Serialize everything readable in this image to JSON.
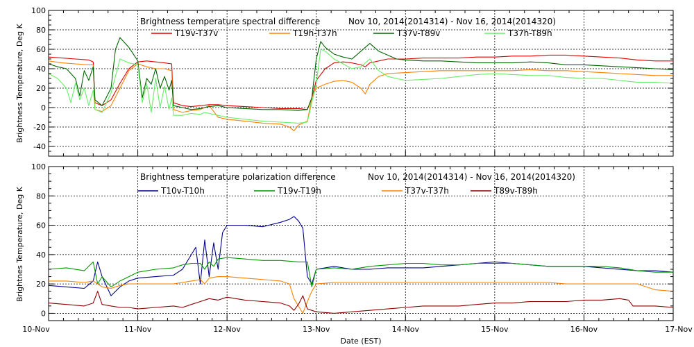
{
  "xlabel": "Date (EST)",
  "x_ticks": [
    "10-Nov",
    "11-Nov",
    "12-Nov",
    "13-Nov",
    "14-Nov",
    "15-Nov",
    "16-Nov",
    "17-Nov"
  ],
  "chart_data": [
    {
      "type": "line",
      "title": "Brightness temperature spectral difference",
      "date_range": "Nov 10, 2014(2014314) - Nov 16, 2014(2014320)",
      "xlabel": "Date (EST)",
      "ylabel": "Brightness Temperature, Deg K",
      "xlim": [
        0,
        7
      ],
      "ylim": [
        -50,
        100
      ],
      "y_ticks": [
        "-40",
        "-20",
        "0",
        "20",
        "40",
        "60",
        "80",
        "100"
      ],
      "grid": true,
      "legend_position": "top",
      "series": [
        {
          "name": "T19v-T37v",
          "color": "#e00000",
          "x": [
            0,
            0.15,
            0.3,
            0.45,
            0.5,
            0.52,
            0.6,
            0.7,
            0.8,
            0.9,
            1.0,
            1.1,
            1.2,
            1.3,
            1.38,
            1.4,
            1.5,
            1.6,
            1.7,
            1.8,
            1.9,
            2.0,
            2.2,
            2.4,
            2.6,
            2.7,
            2.8,
            2.9,
            2.95,
            3.0,
            3.1,
            3.2,
            3.3,
            3.4,
            3.5,
            3.55,
            3.6,
            3.7,
            3.8,
            4.0,
            4.2,
            4.4,
            4.6,
            4.8,
            5.0,
            5.2,
            5.4,
            5.6,
            5.8,
            6.0,
            6.2,
            6.4,
            6.6,
            6.8,
            7.0
          ],
          "y": [
            52,
            51,
            50,
            49,
            47,
            5,
            2,
            8,
            25,
            40,
            47,
            48,
            47,
            46,
            45,
            5,
            2,
            1,
            2,
            3,
            3,
            2,
            1,
            0,
            -1,
            -1,
            -1,
            -2,
            10,
            28,
            40,
            46,
            47,
            46,
            44,
            42,
            46,
            48,
            50,
            50,
            51,
            51,
            51,
            52,
            52,
            53,
            53,
            54,
            54,
            53,
            52,
            51,
            49,
            48,
            48
          ]
        },
        {
          "name": "T19h-T37h",
          "color": "#ff8000",
          "x": [
            0,
            0.15,
            0.3,
            0.45,
            0.5,
            0.52,
            0.6,
            0.7,
            0.8,
            0.9,
            1.0,
            1.1,
            1.2,
            1.3,
            1.38,
            1.4,
            1.5,
            1.6,
            1.7,
            1.8,
            1.9,
            2.0,
            2.2,
            2.4,
            2.6,
            2.7,
            2.75,
            2.8,
            2.9,
            2.95,
            3.0,
            3.1,
            3.2,
            3.3,
            3.4,
            3.5,
            3.55,
            3.6,
            3.7,
            3.8,
            4.0,
            4.2,
            4.4,
            4.6,
            4.8,
            5.0,
            5.2,
            5.4,
            5.6,
            5.8,
            6.0,
            6.2,
            6.4,
            6.6,
            6.8,
            7.0
          ],
          "y": [
            48,
            46,
            45,
            44,
            44,
            -2,
            -4,
            2,
            20,
            38,
            45,
            42,
            40,
            40,
            38,
            -2,
            -5,
            -3,
            -2,
            2,
            -10,
            -12,
            -14,
            -16,
            -17,
            -20,
            -24,
            -18,
            -14,
            10,
            20,
            24,
            27,
            28,
            26,
            20,
            14,
            24,
            32,
            35,
            36,
            37,
            38,
            38,
            38,
            38,
            38,
            39,
            38,
            38,
            37,
            36,
            35,
            34,
            33,
            33
          ]
        },
        {
          "name": "T37v-T89v",
          "color": "#006400",
          "x": [
            0,
            0.1,
            0.2,
            0.3,
            0.35,
            0.4,
            0.45,
            0.5,
            0.52,
            0.6,
            0.7,
            0.75,
            0.8,
            0.9,
            1.0,
            1.05,
            1.1,
            1.15,
            1.2,
            1.25,
            1.3,
            1.35,
            1.38,
            1.4,
            1.5,
            1.6,
            1.7,
            1.75,
            1.8,
            1.9,
            2.0,
            2.2,
            2.4,
            2.6,
            2.8,
            2.9,
            2.95,
            3.0,
            3.05,
            3.1,
            3.2,
            3.3,
            3.4,
            3.5,
            3.6,
            3.7,
            3.8,
            3.9,
            4.0,
            4.2,
            4.4,
            4.6,
            4.8,
            5.0,
            5.2,
            5.4,
            5.6,
            5.8,
            6.0,
            6.2,
            6.4,
            6.6,
            6.8,
            7.0
          ],
          "y": [
            45,
            42,
            40,
            30,
            12,
            38,
            28,
            42,
            8,
            2,
            20,
            60,
            72,
            62,
            48,
            10,
            30,
            24,
            40,
            20,
            32,
            18,
            28,
            2,
            0,
            -2,
            -1,
            0,
            1,
            2,
            0,
            -1,
            -2,
            -2,
            -3,
            -2,
            10,
            50,
            68,
            62,
            55,
            52,
            50,
            58,
            66,
            58,
            54,
            50,
            49,
            48,
            48,
            47,
            46,
            46,
            46,
            47,
            46,
            44,
            44,
            43,
            42,
            41,
            40,
            39
          ]
        },
        {
          "name": "T37h-T89h",
          "color": "#66ee66",
          "x": [
            0,
            0.1,
            0.2,
            0.25,
            0.3,
            0.35,
            0.4,
            0.45,
            0.5,
            0.52,
            0.6,
            0.7,
            0.8,
            0.9,
            1.0,
            1.05,
            1.1,
            1.15,
            1.2,
            1.25,
            1.3,
            1.35,
            1.38,
            1.4,
            1.5,
            1.6,
            1.7,
            1.75,
            1.8,
            1.9,
            2.0,
            2.2,
            2.4,
            2.6,
            2.8,
            2.9,
            2.95,
            3.0,
            3.05,
            3.1,
            3.2,
            3.3,
            3.4,
            3.5,
            3.6,
            3.7,
            3.8,
            3.9,
            4.0,
            4.2,
            4.4,
            4.6,
            4.8,
            5.0,
            5.2,
            5.4,
            5.6,
            5.8,
            6.0,
            6.2,
            6.4,
            6.6,
            6.8,
            7.0
          ],
          "y": [
            35,
            30,
            20,
            5,
            25,
            8,
            20,
            2,
            18,
            -2,
            -5,
            15,
            50,
            46,
            44,
            5,
            25,
            -5,
            30,
            0,
            22,
            -2,
            10,
            -8,
            -8,
            -6,
            -7,
            -5,
            -6,
            -8,
            -10,
            -12,
            -14,
            -15,
            -16,
            -15,
            5,
            25,
            60,
            58,
            50,
            45,
            40,
            42,
            50,
            38,
            32,
            30,
            28,
            29,
            30,
            32,
            34,
            35,
            34,
            33,
            33,
            31,
            30,
            30,
            28,
            26,
            26,
            25
          ]
        }
      ]
    },
    {
      "type": "line",
      "title": "Brightness temperature polarization difference",
      "date_range": "Nov 10, 2014(2014314) - Nov 16, 2014(2014320)",
      "xlabel": "Date (EST)",
      "ylabel": "Brightnes Temperature, Deg K",
      "xlim": [
        0,
        7
      ],
      "ylim": [
        -5,
        100
      ],
      "y_ticks": [
        "0",
        "20",
        "40",
        "60",
        "80",
        "100"
      ],
      "grid": true,
      "legend_position": "top",
      "series": [
        {
          "name": "T10v-T10h",
          "color": "#00008b",
          "x": [
            0,
            0.2,
            0.4,
            0.5,
            0.55,
            0.6,
            0.7,
            0.8,
            0.9,
            1.0,
            1.2,
            1.4,
            1.5,
            1.6,
            1.65,
            1.7,
            1.75,
            1.8,
            1.85,
            1.9,
            1.95,
            2.0,
            2.2,
            2.4,
            2.6,
            2.7,
            2.75,
            2.8,
            2.85,
            2.9,
            2.95,
            3.0,
            3.2,
            3.4,
            3.6,
            3.8,
            4.0,
            4.2,
            4.4,
            4.6,
            4.8,
            5.0,
            5.2,
            5.4,
            5.6,
            5.8,
            6.0,
            6.2,
            6.4,
            6.6,
            6.8,
            7.0
          ],
          "y": [
            19,
            18,
            17,
            22,
            35,
            25,
            12,
            18,
            22,
            24,
            25,
            26,
            30,
            40,
            45,
            20,
            50,
            25,
            48,
            30,
            55,
            60,
            60,
            59,
            62,
            64,
            66,
            63,
            58,
            25,
            20,
            30,
            32,
            30,
            30,
            31,
            31,
            31,
            32,
            33,
            34,
            35,
            34,
            33,
            32,
            32,
            32,
            31,
            30,
            29,
            29,
            28
          ]
        },
        {
          "name": "T19v-T19h",
          "color": "#009900",
          "x": [
            0,
            0.2,
            0.4,
            0.5,
            0.55,
            0.6,
            0.7,
            0.8,
            0.9,
            1.0,
            1.2,
            1.4,
            1.5,
            1.6,
            1.7,
            1.75,
            1.8,
            1.85,
            1.9,
            2.0,
            2.2,
            2.4,
            2.6,
            2.8,
            2.9,
            2.95,
            3.0,
            3.2,
            3.4,
            3.6,
            3.8,
            4.0,
            4.2,
            4.4,
            4.6,
            4.8,
            5.0,
            5.2,
            5.4,
            5.6,
            5.8,
            6.0,
            6.2,
            6.4,
            6.6,
            6.8,
            7.0
          ],
          "y": [
            30,
            31,
            29,
            35,
            20,
            25,
            18,
            22,
            25,
            28,
            30,
            31,
            33,
            34,
            34,
            30,
            35,
            32,
            37,
            38,
            37,
            36,
            36,
            35,
            35,
            18,
            30,
            31,
            30,
            32,
            33,
            34,
            34,
            33,
            33,
            34,
            34,
            34,
            33,
            32,
            32,
            32,
            32,
            31,
            29,
            28,
            28
          ]
        },
        {
          "name": "T37v-T37h",
          "color": "#ff8000",
          "x": [
            0,
            0.2,
            0.4,
            0.5,
            0.55,
            0.6,
            0.7,
            0.8,
            0.9,
            1.0,
            1.2,
            1.4,
            1.5,
            1.6,
            1.7,
            1.75,
            1.8,
            1.9,
            2.0,
            2.2,
            2.4,
            2.6,
            2.7,
            2.75,
            2.8,
            2.85,
            2.9,
            2.95,
            3.0,
            3.2,
            3.4,
            3.6,
            3.8,
            4.0,
            4.2,
            4.4,
            4.6,
            4.8,
            5.0,
            5.2,
            5.4,
            5.6,
            5.8,
            6.0,
            6.2,
            6.4,
            6.6,
            6.8,
            7.0
          ],
          "y": [
            22,
            22,
            21,
            22,
            20,
            18,
            17,
            19,
            20,
            20,
            20,
            20,
            21,
            22,
            23,
            20,
            24,
            25,
            25,
            24,
            23,
            22,
            20,
            10,
            5,
            0,
            8,
            15,
            20,
            21,
            21,
            21,
            21,
            21,
            21,
            21,
            21,
            21,
            21,
            21,
            21,
            21,
            20,
            20,
            20,
            20,
            20,
            16,
            15
          ]
        },
        {
          "name": "T89v-T89h",
          "color": "#8b0000",
          "x": [
            0,
            0.2,
            0.4,
            0.5,
            0.55,
            0.6,
            0.7,
            0.8,
            0.9,
            1.0,
            1.2,
            1.4,
            1.5,
            1.6,
            1.7,
            1.8,
            1.9,
            2.0,
            2.2,
            2.4,
            2.6,
            2.7,
            2.75,
            2.8,
            2.85,
            2.9,
            2.95,
            3.0,
            3.2,
            3.4,
            3.6,
            3.8,
            4.0,
            4.2,
            4.4,
            4.6,
            4.8,
            5.0,
            5.2,
            5.4,
            5.6,
            5.8,
            6.0,
            6.2,
            6.4,
            6.5,
            6.55,
            6.6,
            6.8,
            7.0
          ],
          "y": [
            7,
            6,
            5,
            7,
            15,
            6,
            5,
            4,
            4,
            3,
            4,
            5,
            4,
            6,
            8,
            10,
            9,
            11,
            9,
            8,
            7,
            5,
            2,
            6,
            12,
            3,
            2,
            1,
            0,
            1,
            2,
            3,
            4,
            5,
            5,
            5,
            6,
            7,
            7,
            8,
            8,
            8,
            9,
            9,
            10,
            9,
            5,
            5,
            5,
            4
          ]
        }
      ]
    }
  ]
}
